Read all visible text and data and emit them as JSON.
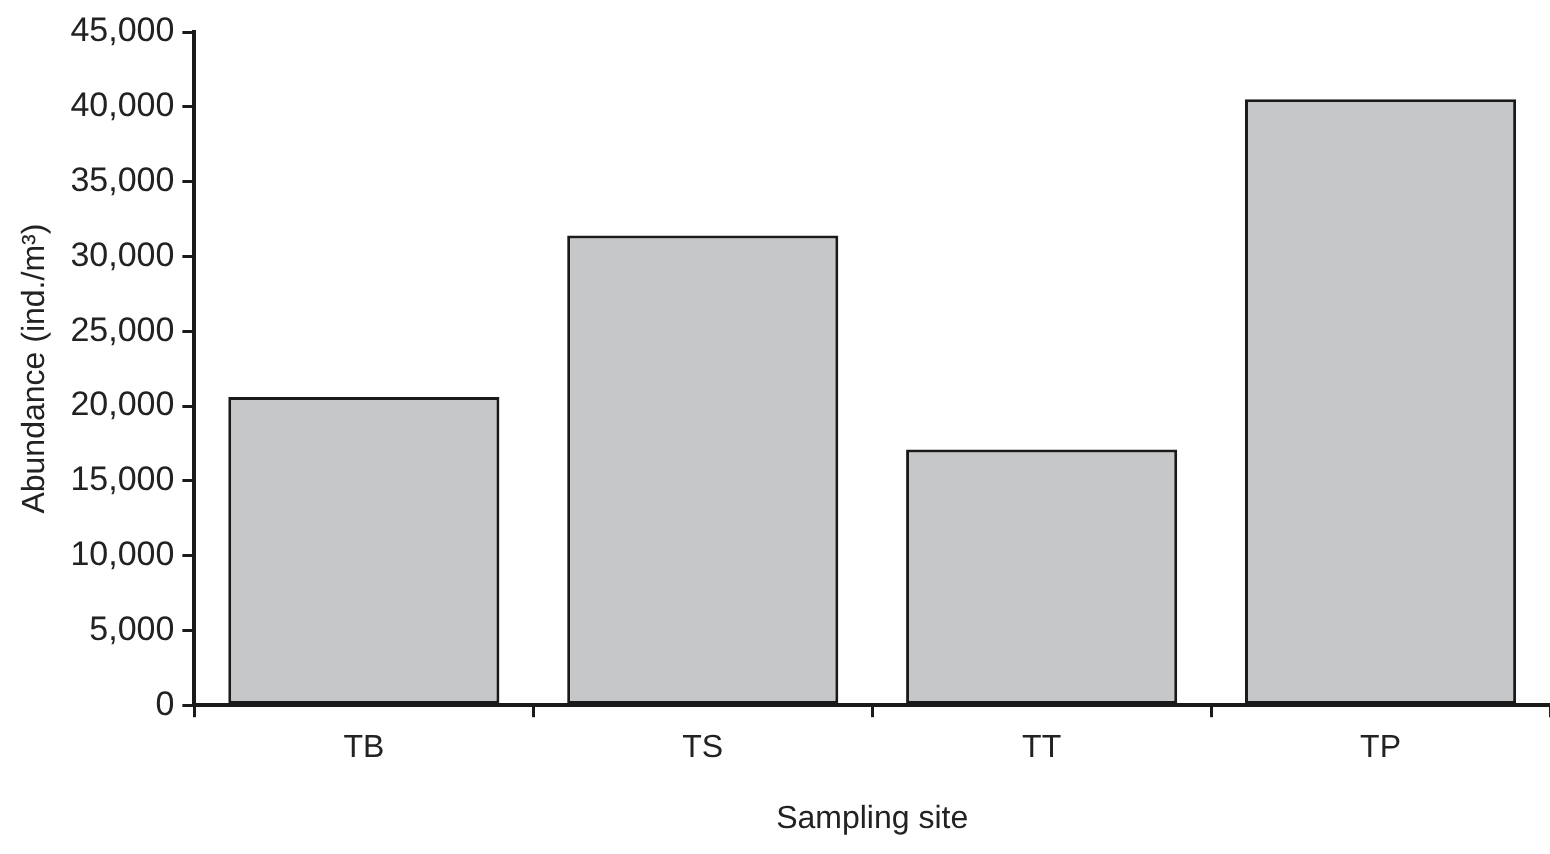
{
  "chart_data": {
    "type": "bar",
    "xlabel": "Sampling site",
    "ylabel": "Abundance (ind./m³)",
    "categories": [
      "TB",
      "TS",
      "TT",
      "TP"
    ],
    "values": [
      20600,
      31400,
      17100,
      40500
    ],
    "color": "#c6c7c9",
    "ylim": [
      0,
      45000
    ],
    "yticks": [
      {
        "value": 0,
        "label": "0"
      },
      {
        "value": 5000,
        "label": "5,000"
      },
      {
        "value": 10000,
        "label": "10,000"
      },
      {
        "value": 15000,
        "label": "15,000"
      },
      {
        "value": 20000,
        "label": "20,000"
      },
      {
        "value": 25000,
        "label": "25,000"
      },
      {
        "value": 30000,
        "label": "30,000"
      },
      {
        "value": 35000,
        "label": "35,000"
      },
      {
        "value": 40000,
        "label": "40,000"
      },
      {
        "value": 45000,
        "label": "45,000"
      }
    ]
  }
}
